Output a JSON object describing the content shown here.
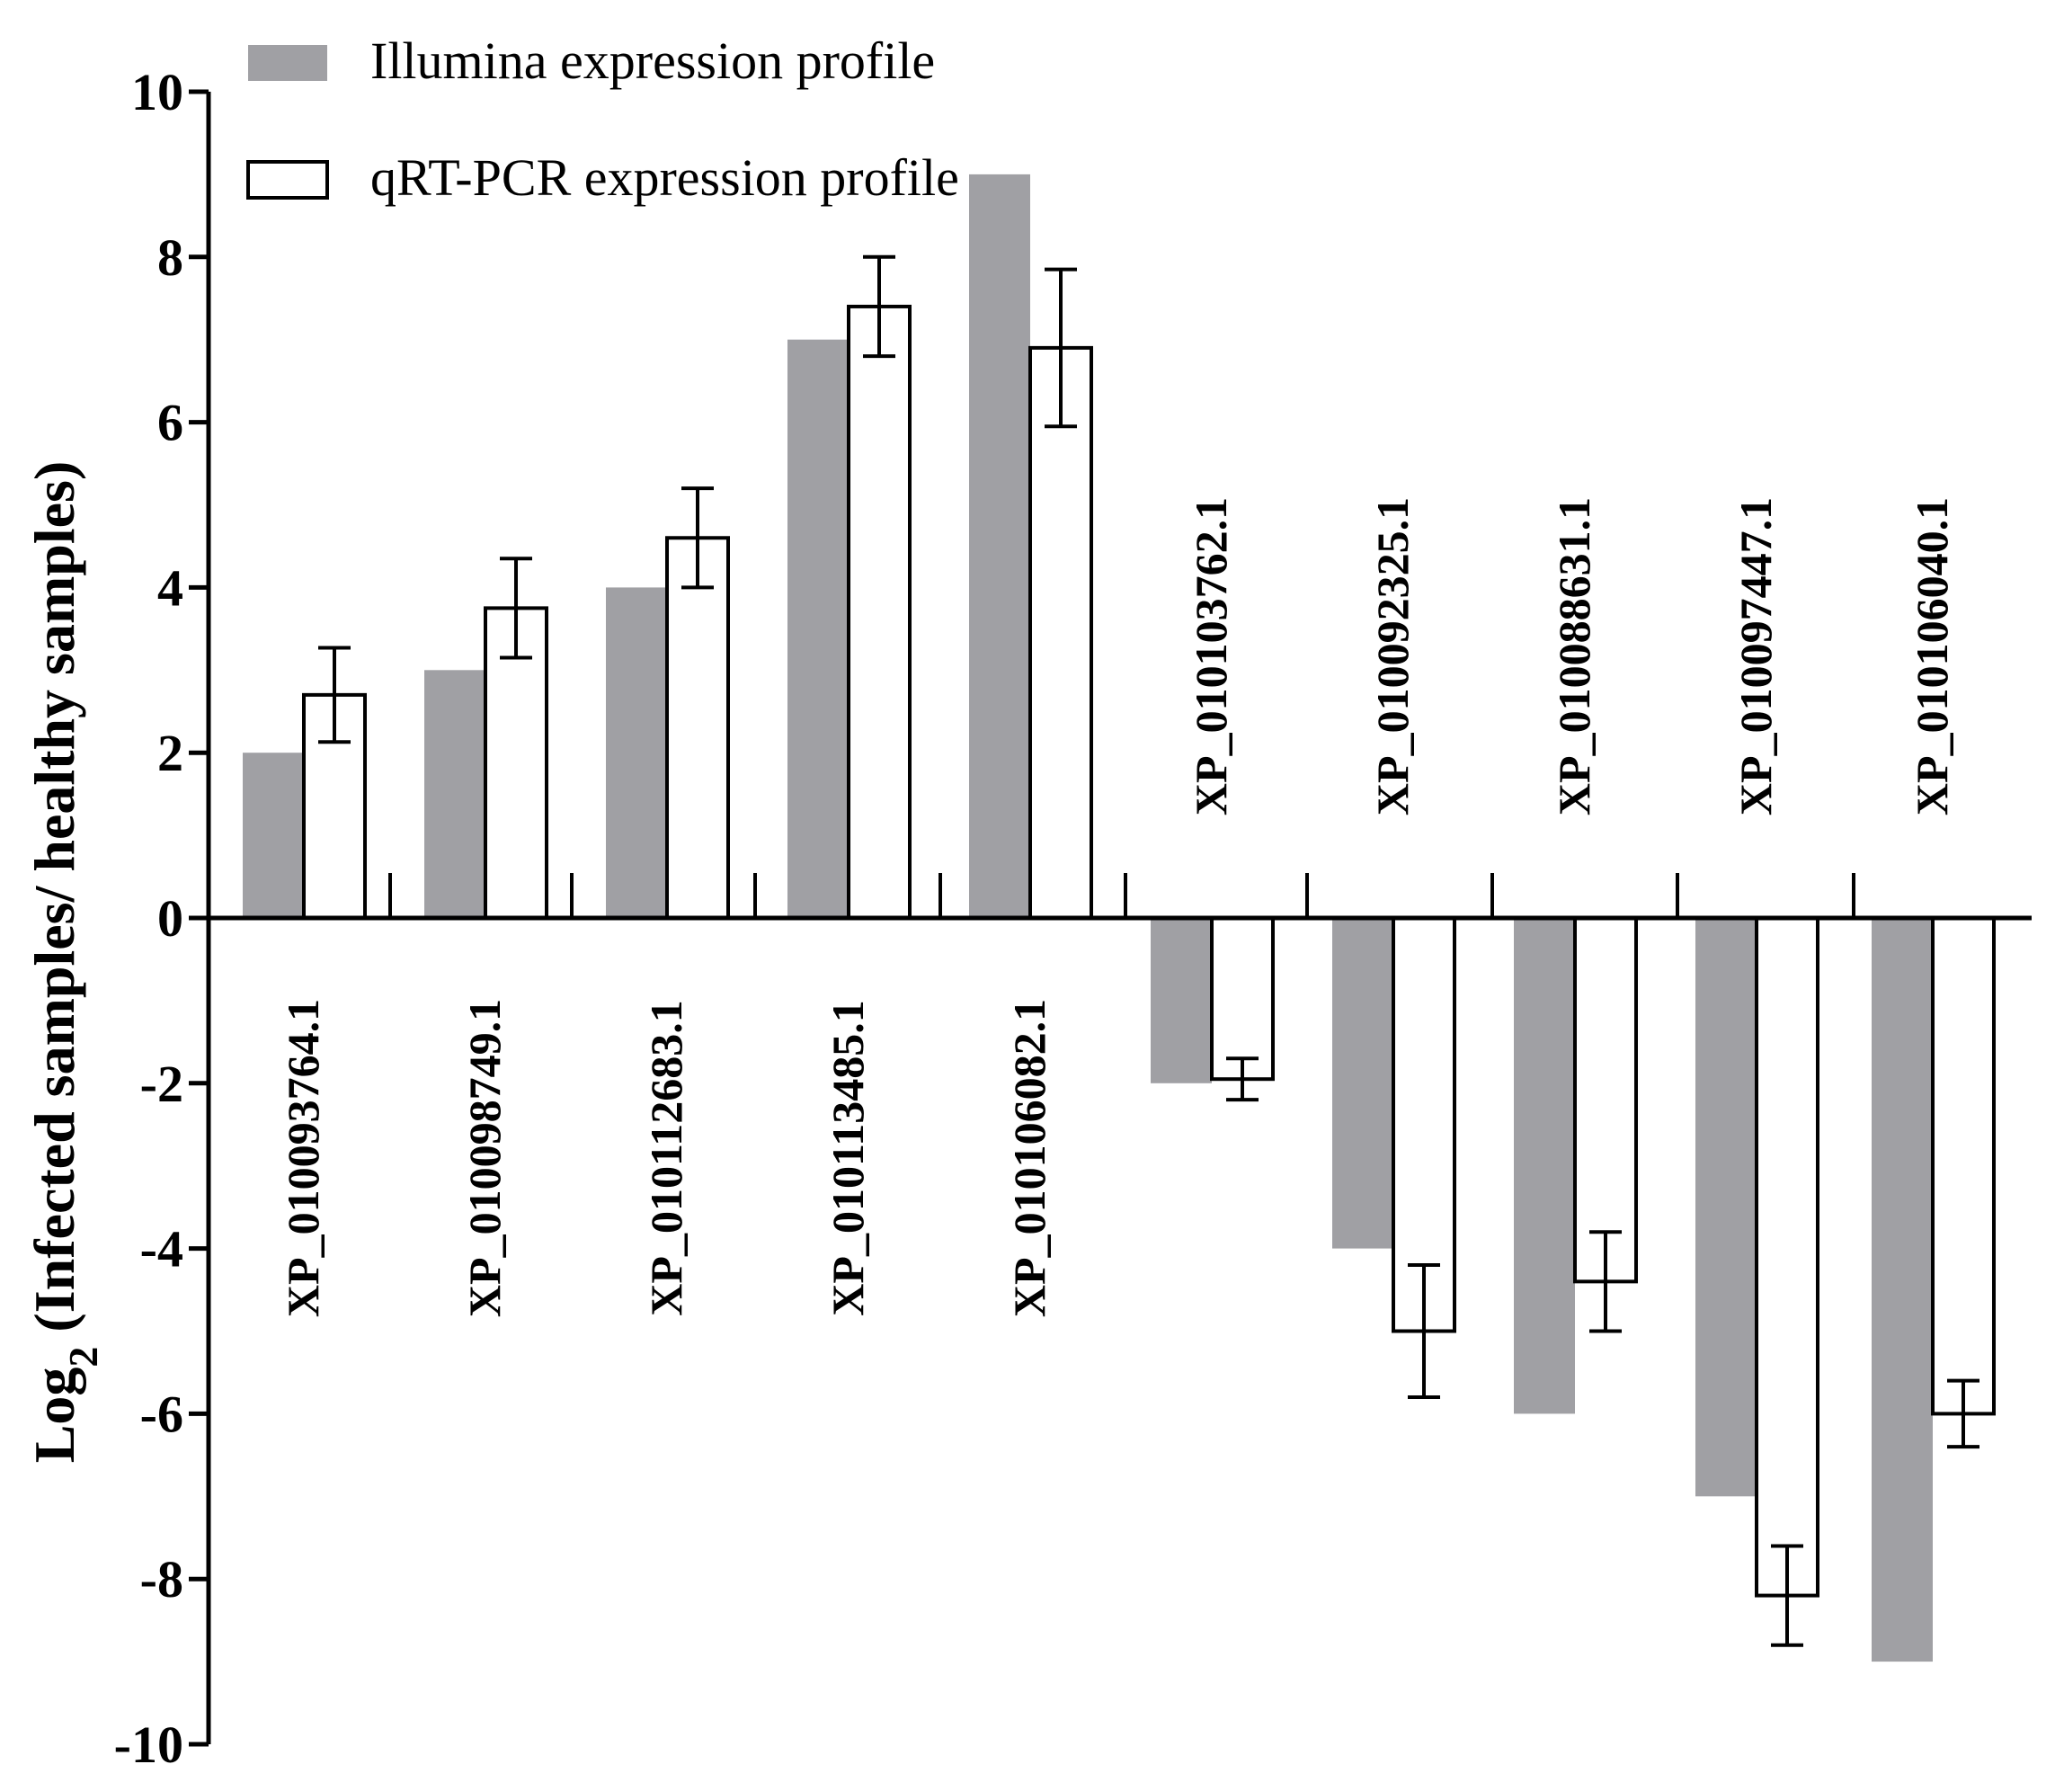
{
  "chart_data": {
    "type": "bar",
    "title": "",
    "xlabel": "",
    "ylabel": {
      "prefix": "Log",
      "subscript": "2",
      "suffix": " (Infected samples/ healthy samples)"
    },
    "ylim": [
      -10,
      10
    ],
    "yticks": [
      10,
      8,
      6,
      4,
      2,
      0,
      -2,
      -4,
      -6,
      -8,
      -10
    ],
    "legend_position": "top-left",
    "categories": [
      "XP_010093764.1",
      "XP_010098749.1",
      "XP_010112683.1",
      "XP_010113485.1",
      "XP_010106082.1",
      "XP_010103762.1",
      "XP_010092325.1",
      "XP_010088631.1",
      "XP_010097447.1",
      "XP_010106040.1"
    ],
    "series": [
      {
        "name": "Illumina expression profile",
        "color": "#a0a0a4",
        "style": "filled",
        "values": [
          2,
          3,
          4,
          7,
          9,
          -2,
          -4,
          -6,
          -7,
          -9
        ]
      },
      {
        "name": "qRT-PCR expression profile",
        "color": "#ffffff",
        "style": "outlined",
        "values": [
          2.7,
          3.75,
          4.6,
          7.4,
          6.9,
          -1.95,
          -5.0,
          -4.4,
          -8.2,
          -6.0
        ],
        "errors": [
          0.57,
          0.6,
          0.6,
          0.6,
          0.95,
          0.25,
          0.8,
          0.6,
          0.6,
          0.4
        ]
      }
    ]
  }
}
